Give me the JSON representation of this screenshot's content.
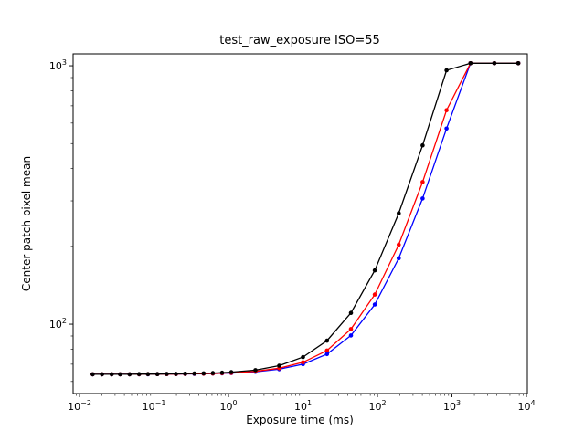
{
  "chart_data": {
    "type": "line",
    "title": "test_raw_exposure ISO=55",
    "xlabel": "Exposure time (ms)",
    "ylabel": "Center patch pixel mean",
    "xscale": "log",
    "yscale": "log",
    "xlim": [
      0.0082,
      10280
    ],
    "ylim": [
      53.9,
      1112
    ],
    "grid": false,
    "legend": "none",
    "background": "#ffffff",
    "x_tick_exponents": [
      -2,
      -1,
      0,
      1,
      2,
      3,
      4
    ],
    "y_tick_exponents": [
      2,
      3
    ],
    "x_tick_labels": [
      "10⁻²",
      "10⁻¹",
      "10⁰",
      "10¹",
      "10²",
      "10³",
      "10⁴"
    ],
    "y_tick_labels": [
      "10²",
      "10³"
    ],
    "x": [
      0.015,
      0.02,
      0.027,
      0.035,
      0.047,
      0.063,
      0.083,
      0.111,
      0.148,
      0.197,
      0.262,
      0.348,
      0.463,
      0.616,
      0.819,
      1.09,
      2.3,
      4.8,
      10,
      21,
      44,
      92,
      193,
      404,
      846,
      1772,
      3710,
      7770
    ],
    "series": [
      {
        "name": "blue",
        "color": "#0000ff",
        "values": [
          64.0,
          64.0,
          64.0,
          64.0,
          64.0,
          64.0,
          64.0,
          64.1,
          64.1,
          64.1,
          64.2,
          64.2,
          64.3,
          64.4,
          64.5,
          64.7,
          65.4,
          66.9,
          70.0,
          76.6,
          90.4,
          119.2,
          179.8,
          306.4,
          571.6,
          1023,
          1023,
          1023
        ]
      },
      {
        "name": "red",
        "color": "#ff0000",
        "values": [
          64.0,
          64.0,
          64.0,
          64.0,
          64.0,
          64.0,
          64.1,
          64.1,
          64.1,
          64.1,
          64.2,
          64.3,
          64.3,
          64.4,
          64.6,
          64.8,
          65.7,
          67.5,
          71.2,
          79.1,
          95.7,
          130.2,
          203.0,
          354.9,
          673.1,
          1023,
          1023,
          1023
        ]
      },
      {
        "name": "black",
        "color": "#000000",
        "values": [
          64.0,
          64.0,
          64.0,
          64.0,
          64.0,
          64.1,
          64.1,
          64.1,
          64.2,
          64.2,
          64.3,
          64.4,
          64.5,
          64.7,
          64.9,
          65.2,
          66.4,
          69.1,
          74.6,
          86.3,
          110.6,
          161.5,
          268.6,
          492.2,
          960.8,
          1023,
          1023,
          1023
        ]
      }
    ]
  }
}
